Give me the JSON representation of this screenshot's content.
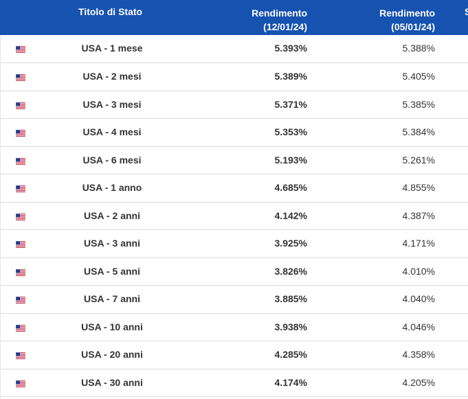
{
  "header": {
    "col_name": "Titolo di Stato",
    "col_yield_current_label": "Rendimento",
    "col_yield_current_date": "(12/01/24)",
    "col_yield_prev_label": "Rendimento",
    "col_yield_prev_date": "(05/01/24)",
    "col_cut": "S"
  },
  "rows": [
    {
      "flag": "us-flag-icon",
      "name": "USA - 1 mese",
      "yield_current": "5.393%",
      "yield_prev": "5.388%"
    },
    {
      "flag": "us-flag-icon",
      "name": "USA - 2 mesi",
      "yield_current": "5.389%",
      "yield_prev": "5.405%"
    },
    {
      "flag": "us-flag-icon",
      "name": "USA - 3 mesi",
      "yield_current": "5.371%",
      "yield_prev": "5.385%"
    },
    {
      "flag": "us-flag-icon",
      "name": "USA - 4 mesi",
      "yield_current": "5.353%",
      "yield_prev": "5.384%"
    },
    {
      "flag": "us-flag-icon",
      "name": "USA - 6 mesi",
      "yield_current": "5.193%",
      "yield_prev": "5.261%"
    },
    {
      "flag": "us-flag-icon",
      "name": "USA - 1 anno",
      "yield_current": "4.685%",
      "yield_prev": "4.855%"
    },
    {
      "flag": "us-flag-icon",
      "name": "USA - 2 anni",
      "yield_current": "4.142%",
      "yield_prev": "4.387%"
    },
    {
      "flag": "us-flag-icon",
      "name": "USA - 3 anni",
      "yield_current": "3.925%",
      "yield_prev": "4.171%"
    },
    {
      "flag": "us-flag-icon",
      "name": "USA - 5 anni",
      "yield_current": "3.826%",
      "yield_prev": "4.010%"
    },
    {
      "flag": "us-flag-icon",
      "name": "USA - 7 anni",
      "yield_current": "3.885%",
      "yield_prev": "4.040%"
    },
    {
      "flag": "us-flag-icon",
      "name": "USA - 10 anni",
      "yield_current": "3.938%",
      "yield_prev": "4.046%"
    },
    {
      "flag": "us-flag-icon",
      "name": "USA - 20 anni",
      "yield_current": "4.285%",
      "yield_prev": "4.358%"
    },
    {
      "flag": "us-flag-icon",
      "name": "USA - 30 anni",
      "yield_current": "4.174%",
      "yield_prev": "4.205%"
    }
  ],
  "colors": {
    "header_bg": "#1652b0",
    "row_border": "#dcdcdc"
  }
}
